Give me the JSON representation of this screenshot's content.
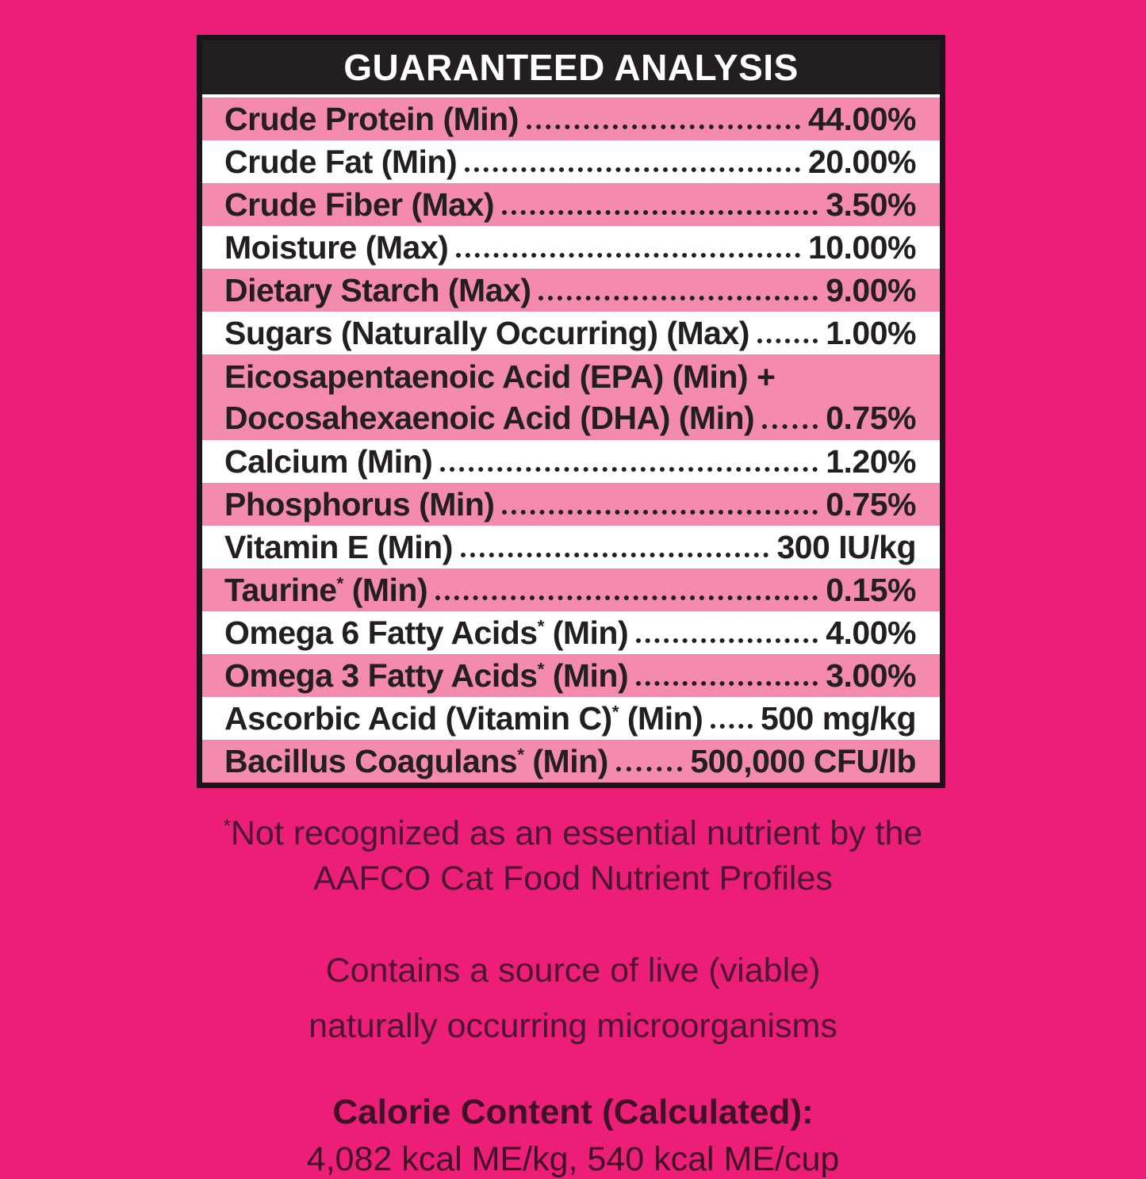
{
  "colors": {
    "background": "#EC1E78",
    "stripe_pink": "#F48BAE",
    "header_black": "#231F20",
    "footnote_text": "#4C1630"
  },
  "table": {
    "title": "GUARANTEED ANALYSIS",
    "rows": [
      {
        "label": "Crude Protein (Min)",
        "sup": "",
        "label2": "",
        "value": "44.00%"
      },
      {
        "label": "Crude Fat (Min)",
        "sup": "",
        "label2": "",
        "value": "20.00%"
      },
      {
        "label": "Crude Fiber (Max)",
        "sup": "",
        "label2": "",
        "value": "3.50%"
      },
      {
        "label": "Moisture (Max)",
        "sup": "",
        "label2": "",
        "value": "10.00%"
      },
      {
        "label": "Dietary Starch (Max)",
        "sup": "",
        "label2": "",
        "value": "9.00%"
      },
      {
        "label": "Sugars (Naturally Occurring) (Max)",
        "sup": "",
        "label2": "",
        "value": "1.00%"
      },
      {
        "line1": "Eicosapentaenoic Acid (EPA) (Min) +",
        "label": "Docosahexaenoic Acid (DHA) (Min)",
        "sup": "",
        "label2": "",
        "value": "0.75%"
      },
      {
        "label": "Calcium (Min)",
        "sup": "",
        "label2": "",
        "value": "1.20%"
      },
      {
        "label": "Phosphorus (Min)",
        "sup": "",
        "label2": "",
        "value": "0.75%"
      },
      {
        "label": "Vitamin E (Min)",
        "sup": "",
        "label2": "",
        "value": "300 IU/kg"
      },
      {
        "label": "Taurine",
        "sup": "*",
        "label2": " (Min)",
        "value": "0.15%"
      },
      {
        "label": "Omega 6 Fatty Acids",
        "sup": "*",
        "label2": " (Min)",
        "value": "4.00%"
      },
      {
        "label": "Omega 3 Fatty Acids",
        "sup": "*",
        "label2": " (Min)",
        "value": "3.00%"
      },
      {
        "label": "Ascorbic Acid (Vitamin C)",
        "sup": "*",
        "label2": " (Min)",
        "value": "500 mg/kg"
      },
      {
        "label": "Bacillus Coagulans",
        "sup": "*",
        "label2": " (Min)",
        "value": "500,000 CFU/lb"
      }
    ]
  },
  "footnote": {
    "asterisk": "*",
    "line1": "Not recognized as an essential nutrient by the",
    "line2": "AAFCO Cat Food Nutrient Profiles"
  },
  "contains": {
    "line1": "Contains a source of live (viable)",
    "line2": "naturally occurring microorganisms"
  },
  "calorie": {
    "title": "Calorie Content (Calculated):",
    "values": "4,082 kcal ME/kg, 540 kcal ME/cup"
  }
}
